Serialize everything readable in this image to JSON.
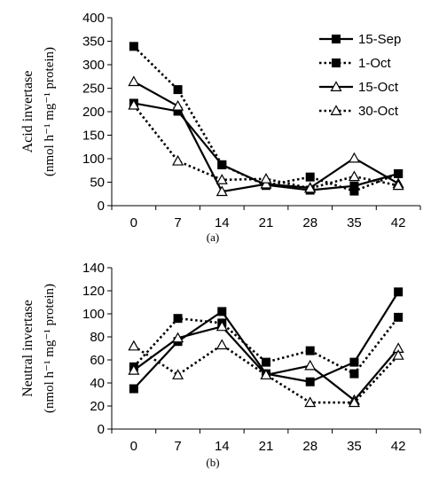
{
  "chart_data": [
    {
      "type": "line",
      "panel_label": "(a)",
      "ylabel_line1": "Acid invertase",
      "ylabel_line2": "(nmol h⁻¹ mg⁻¹ protein)",
      "xlabel": "",
      "x": [
        0,
        7,
        14,
        21,
        28,
        35,
        42
      ],
      "ylim": [
        0,
        400
      ],
      "yticks": [
        0,
        50,
        100,
        150,
        200,
        250,
        300,
        350,
        400
      ],
      "grid": false,
      "legend_position": "top-right",
      "series": [
        {
          "name": "15-Sep",
          "line": "solid",
          "marker": "square-filled",
          "values": [
            218,
            201,
            87,
            44,
            33,
            42,
            68
          ]
        },
        {
          "name": "1-Oct",
          "line": "dotted",
          "marker": "square-filled",
          "values": [
            339,
            247,
            87,
            43,
            61,
            31,
            68
          ]
        },
        {
          "name": "15-Oct",
          "line": "solid",
          "marker": "triangle-open",
          "values": [
            264,
            212,
            30,
            46,
            38,
            101,
            47
          ]
        },
        {
          "name": "30-Oct",
          "line": "dotted",
          "marker": "triangle-open",
          "values": [
            214,
            95,
            55,
            57,
            37,
            62,
            43
          ]
        }
      ]
    },
    {
      "type": "line",
      "panel_label": "(b)",
      "ylabel_line1": "Neutral invertase",
      "ylabel_line2": "(nmol h⁻¹ mg⁻¹ protein)",
      "xlabel": "",
      "x": [
        0,
        7,
        14,
        21,
        28,
        35,
        42
      ],
      "ylim": [
        0,
        140
      ],
      "yticks": [
        0,
        20,
        40,
        60,
        80,
        100,
        120,
        140
      ],
      "grid": false,
      "legend_position": "",
      "series": [
        {
          "name": "15-Sep",
          "line": "solid",
          "marker": "square-filled",
          "values": [
            35,
            76,
            102,
            48,
            41,
            58,
            119
          ]
        },
        {
          "name": "1-Oct",
          "line": "dotted",
          "marker": "square-filled",
          "values": [
            54,
            96,
            92,
            58,
            68,
            48,
            97
          ]
        },
        {
          "name": "15-Oct",
          "line": "solid",
          "marker": "triangle-open",
          "values": [
            51,
            79,
            89,
            47,
            55,
            25,
            70
          ]
        },
        {
          "name": "30-Oct",
          "line": "dotted",
          "marker": "triangle-open",
          "values": [
            72,
            47,
            73,
            47,
            23,
            23,
            64
          ]
        }
      ]
    }
  ]
}
